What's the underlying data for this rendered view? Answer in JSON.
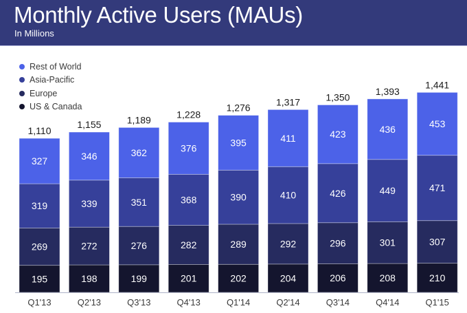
{
  "chart_data": {
    "type": "bar",
    "stacked": true,
    "title": "Monthly Active Users (MAUs)",
    "subtitle": "In Millions",
    "xlabel": "",
    "ylabel": "",
    "grid": false,
    "legend_position": "top-left",
    "categories": [
      "Q1'13",
      "Q2'13",
      "Q3'13",
      "Q4'13",
      "Q1'14",
      "Q2'14",
      "Q3'14",
      "Q4'14",
      "Q1'15"
    ],
    "series": [
      {
        "name": "US & Canada",
        "color": "#14152e",
        "values": [
          195,
          198,
          199,
          201,
          202,
          204,
          206,
          208,
          210
        ]
      },
      {
        "name": "Europe",
        "color": "#262b5f",
        "values": [
          269,
          272,
          276,
          282,
          289,
          292,
          296,
          301,
          307
        ]
      },
      {
        "name": "Asia-Pacific",
        "color": "#36409a",
        "values": [
          319,
          339,
          351,
          368,
          390,
          410,
          426,
          449,
          471
        ]
      },
      {
        "name": "Rest of World",
        "color": "#4c62e8",
        "values": [
          327,
          346,
          362,
          376,
          395,
          411,
          423,
          436,
          453
        ]
      }
    ],
    "totals": [
      "1,110",
      "1,155",
      "1,189",
      "1,228",
      "1,276",
      "1,317",
      "1,350",
      "1,393",
      "1,441"
    ],
    "legend_order": [
      "Rest of World",
      "Asia-Pacific",
      "Europe",
      "US & Canada"
    ]
  }
}
